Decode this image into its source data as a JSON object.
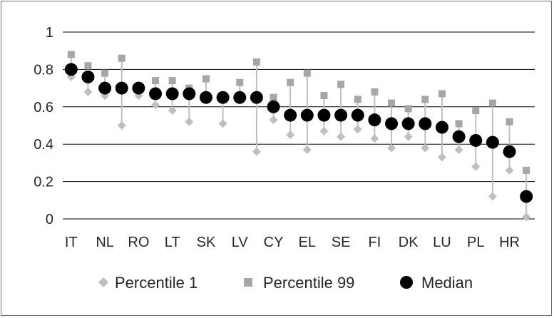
{
  "chart_data": {
    "type": "scatter",
    "ylim": [
      0,
      1
    ],
    "yticks": [
      "0",
      "0.2",
      "0.4",
      "0.6",
      "0.8",
      "1"
    ],
    "categories": [
      "IT",
      "",
      "NL",
      "",
      "RO",
      "",
      "LT",
      "",
      "SK",
      "",
      "LV",
      "",
      "CY",
      "",
      "EL",
      "",
      "SE",
      "",
      "FI",
      "",
      "DK",
      "",
      "LU",
      "",
      "PL",
      "",
      "HR",
      ""
    ],
    "grid": true,
    "legend_position": "bottom",
    "series": [
      {
        "name": "Percentile 1",
        "marker": "diamond",
        "color": "#bfbfbf",
        "values": [
          0.76,
          0.68,
          0.66,
          0.5,
          0.66,
          0.61,
          0.58,
          0.52,
          0.66,
          0.51,
          0.64,
          0.36,
          0.53,
          0.45,
          0.37,
          0.47,
          0.44,
          0.48,
          0.43,
          0.38,
          0.44,
          0.38,
          0.33,
          0.37,
          0.28,
          0.12,
          0.26,
          0.01
        ]
      },
      {
        "name": "Percentile 99",
        "marker": "square",
        "color": "#a6a6a6",
        "values": [
          0.88,
          0.82,
          0.78,
          0.86,
          0.7,
          0.74,
          0.74,
          0.7,
          0.75,
          0.66,
          0.73,
          0.84,
          0.65,
          0.73,
          0.78,
          0.66,
          0.72,
          0.64,
          0.68,
          0.62,
          0.59,
          0.64,
          0.67,
          0.51,
          0.58,
          0.62,
          0.52,
          0.26
        ]
      },
      {
        "name": "Median",
        "marker": "circle",
        "color": "#000000",
        "values": [
          0.8,
          0.76,
          0.7,
          0.7,
          0.7,
          0.67,
          0.67,
          0.67,
          0.65,
          0.65,
          0.65,
          0.65,
          0.6,
          0.555,
          0.555,
          0.555,
          0.555,
          0.555,
          0.53,
          0.51,
          0.51,
          0.51,
          0.49,
          0.44,
          0.42,
          0.41,
          0.36,
          0.12
        ]
      }
    ]
  }
}
